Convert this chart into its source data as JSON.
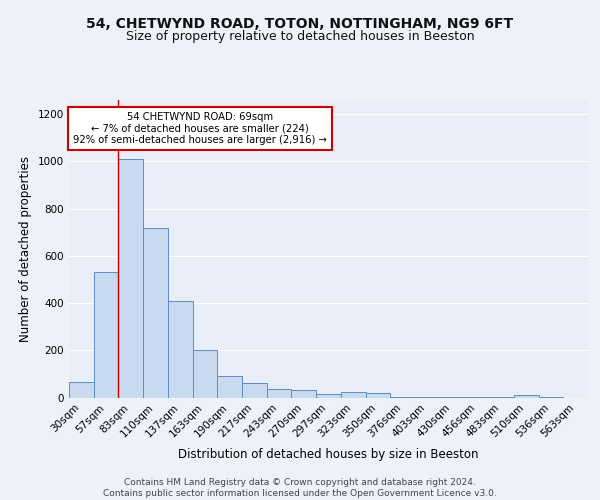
{
  "title1": "54, CHETWYND ROAD, TOTON, NOTTINGHAM, NG9 6FT",
  "title2": "Size of property relative to detached houses in Beeston",
  "xlabel": "Distribution of detached houses by size in Beeston",
  "ylabel": "Number of detached properties",
  "categories": [
    "30sqm",
    "57sqm",
    "83sqm",
    "110sqm",
    "137sqm",
    "163sqm",
    "190sqm",
    "217sqm",
    "243sqm",
    "270sqm",
    "297sqm",
    "323sqm",
    "350sqm",
    "376sqm",
    "403sqm",
    "430sqm",
    "456sqm",
    "483sqm",
    "510sqm",
    "536sqm",
    "563sqm"
  ],
  "values": [
    65,
    530,
    1010,
    720,
    410,
    200,
    90,
    60,
    38,
    32,
    15,
    22,
    18,
    4,
    2,
    2,
    1,
    1,
    10,
    1,
    0
  ],
  "bar_color": "#c9d9f0",
  "bar_edge_color": "#5b8ec4",
  "red_line_x": 1.5,
  "annotation_text": "54 CHETWYND ROAD: 69sqm\n← 7% of detached houses are smaller (224)\n92% of semi-detached houses are larger (2,916) →",
  "annotation_box_color": "#ffffff",
  "annotation_box_edge": "#cc0000",
  "footer": "Contains HM Land Registry data © Crown copyright and database right 2024.\nContains public sector information licensed under the Open Government Licence v3.0.",
  "ylim": [
    0,
    1260
  ],
  "background_color": "#edf1f8",
  "plot_bg_color": "#e8edf7",
  "grid_color": "#ffffff",
  "title1_fontsize": 10,
  "title2_fontsize": 9,
  "xlabel_fontsize": 8.5,
  "ylabel_fontsize": 8.5,
  "tick_fontsize": 7.5,
  "footer_fontsize": 6.5
}
